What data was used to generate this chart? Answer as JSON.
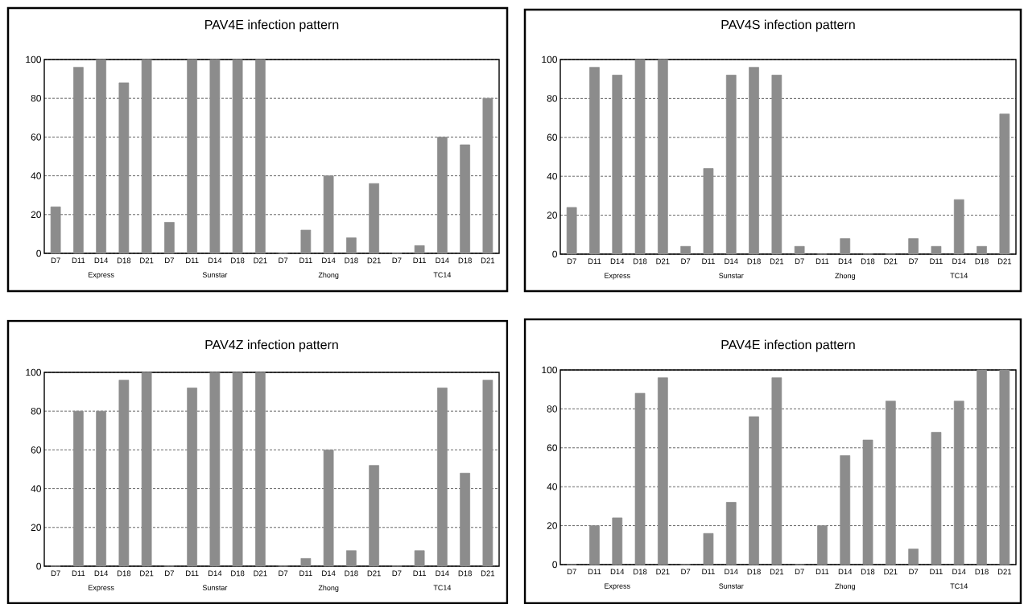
{
  "chart_data": [
    {
      "type": "bar",
      "title": "PAV4E infection pattern",
      "categories": [
        "D7",
        "D11",
        "D14",
        "D18",
        "D21",
        "D7",
        "D11",
        "D14",
        "D18",
        "D21",
        "D7",
        "D11",
        "D14",
        "D18",
        "D21",
        "D7",
        "D11",
        "D14",
        "D18",
        "D21"
      ],
      "values": [
        24,
        96,
        100,
        88,
        100,
        16,
        100,
        100,
        100,
        100,
        0,
        12,
        40,
        8,
        36,
        0,
        4,
        60,
        56,
        80
      ],
      "color": "#8c8c8c",
      "ylim": [
        0,
        100
      ],
      "yticks": [
        0,
        20,
        40,
        60,
        80,
        100
      ],
      "grid": "y",
      "annotations": [
        "Express",
        "Sunstar",
        "Zhong",
        "TC14"
      ]
    },
    {
      "type": "bar",
      "title": "PAV4S infection pattern",
      "categories": [
        "D7",
        "D11",
        "D14",
        "D18",
        "D21",
        "D7",
        "D11",
        "D14",
        "D18",
        "D21",
        "D7",
        "D11",
        "D14",
        "D18",
        "D21",
        "D7",
        "D11",
        "D14",
        "D18",
        "D21"
      ],
      "values": [
        24,
        96,
        92,
        100,
        100,
        4,
        44,
        92,
        96,
        92,
        4,
        0,
        8,
        0,
        0,
        8,
        4,
        28,
        4,
        72
      ],
      "color": "#8c8c8c",
      "ylim": [
        0,
        100
      ],
      "yticks": [
        0,
        20,
        40,
        60,
        80,
        100
      ],
      "grid": "y",
      "annotations": [
        "Express",
        "Sunstar",
        "Zhong",
        "TC14"
      ]
    },
    {
      "type": "bar",
      "title": "PAV4Z infection pattern",
      "categories": [
        "D7",
        "D11",
        "D14",
        "D18",
        "D21",
        "D7",
        "D11",
        "D14",
        "D18",
        "D21",
        "D7",
        "D11",
        "D14",
        "D18",
        "D21",
        "D7",
        "D11",
        "D14",
        "D18",
        "D21"
      ],
      "values": [
        0,
        80,
        80,
        96,
        100,
        0,
        92,
        100,
        100,
        100,
        0,
        4,
        60,
        8,
        52,
        0,
        8,
        92,
        48,
        96
      ],
      "color": "#8c8c8c",
      "ylim": [
        0,
        100
      ],
      "yticks": [
        0,
        20,
        40,
        60,
        80,
        100
      ],
      "grid": "y",
      "annotations": [
        "Express",
        "Sunstar",
        "Zhong",
        "TC14"
      ]
    },
    {
      "type": "bar",
      "title": "PAV4E infection pattern",
      "categories": [
        "D7",
        "D11",
        "D14",
        "D18",
        "D21",
        "D7",
        "D11",
        "D14",
        "D18",
        "D21",
        "D7",
        "D11",
        "D14",
        "D18",
        "D21",
        "D7",
        "D11",
        "D14",
        "D18",
        "D21"
      ],
      "values": [
        0,
        20,
        24,
        88,
        96,
        0,
        16,
        32,
        76,
        96,
        0,
        20,
        56,
        64,
        84,
        8,
        68,
        84,
        100,
        100
      ],
      "color": "#8c8c8c",
      "ylim": [
        0,
        100
      ],
      "yticks": [
        0,
        20,
        40,
        60,
        80,
        100
      ],
      "grid": "y",
      "annotations": [
        "Express",
        "Sunstar",
        "Zhong",
        "TC14"
      ]
    }
  ]
}
